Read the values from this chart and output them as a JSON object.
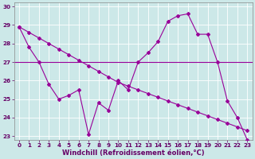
{
  "xlabel": "Windchill (Refroidissement éolien,°C)",
  "bg_color": "#cce8e8",
  "line_color": "#990099",
  "grid_color": "#ffffff",
  "xlim": [
    -0.5,
    23.5
  ],
  "ylim": [
    22.8,
    30.2
  ],
  "yticks": [
    23,
    24,
    25,
    26,
    27,
    28,
    29,
    30
  ],
  "xticks": [
    0,
    1,
    2,
    3,
    4,
    5,
    6,
    7,
    8,
    9,
    10,
    11,
    12,
    13,
    14,
    15,
    16,
    17,
    18,
    19,
    20,
    21,
    22,
    23
  ],
  "series_zigzag": {
    "x": [
      0,
      1,
      2,
      3,
      4,
      5,
      6,
      7,
      8,
      9,
      10,
      11,
      12,
      13,
      14,
      15,
      16,
      17,
      18,
      19,
      20,
      21,
      22,
      23
    ],
    "y": [
      28.9,
      27.8,
      27.0,
      25.8,
      25.0,
      25.2,
      25.5,
      23.1,
      24.8,
      24.4,
      26.0,
      25.5,
      27.0,
      27.5,
      28.1,
      29.2,
      29.5,
      29.6,
      28.5,
      28.5,
      27.0,
      24.9,
      24.0,
      22.8
    ]
  },
  "series_diag": {
    "x": [
      0,
      1,
      2,
      3,
      4,
      5,
      6,
      7,
      8,
      9,
      10,
      11,
      12,
      13,
      14,
      15,
      16,
      17,
      18,
      19,
      20,
      21,
      22,
      23
    ],
    "y": [
      28.9,
      28.6,
      28.3,
      28.0,
      27.7,
      27.4,
      27.1,
      26.8,
      26.5,
      26.2,
      25.9,
      25.7,
      25.5,
      25.3,
      25.1,
      24.9,
      24.7,
      24.5,
      24.3,
      24.1,
      23.9,
      23.7,
      23.5,
      23.3
    ]
  },
  "hline_y": 27.0,
  "marker": "D",
  "markersize": 2.0,
  "linewidth": 0.8,
  "label_fontsize": 6.0,
  "tick_fontsize": 5.2
}
